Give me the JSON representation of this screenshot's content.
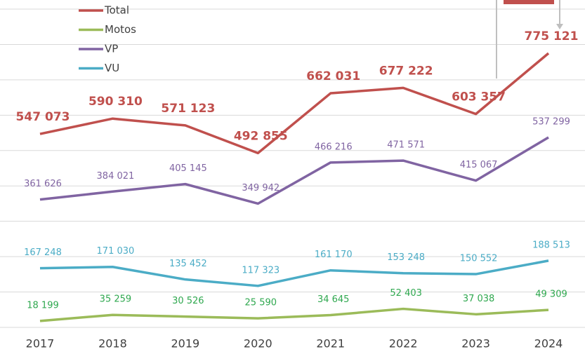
{
  "chart_data": {
    "type": "line",
    "categories": [
      "2017",
      "2018",
      "2019",
      "2020",
      "2021",
      "2022",
      "2023",
      "2024"
    ],
    "series": [
      {
        "name": "Total",
        "color": "#c0504d",
        "label_color": "#c0504d",
        "values": [
          547073,
          590310,
          571123,
          492855,
          662031,
          677222,
          603357,
          775121
        ],
        "value_labels": [
          "547 073",
          "590 310",
          "571 123",
          "492 855",
          "662 031",
          "677 222",
          "603 357",
          "775 121"
        ]
      },
      {
        "name": "Motos",
        "color": "#9bbb59",
        "label_color": "#2fa84f",
        "values": [
          18199,
          35259,
          30526,
          25590,
          34645,
          52403,
          37038,
          49309
        ],
        "value_labels": [
          "18 199",
          "35 259",
          "30 526",
          "25 590",
          "34 645",
          "52 403",
          "37 038",
          "49 309"
        ]
      },
      {
        "name": "VP",
        "color": "#8064a2",
        "label_color": "#8064a2",
        "values": [
          361626,
          384021,
          405145,
          349942,
          466216,
          471571,
          415067,
          537299
        ],
        "value_labels": [
          "361 626",
          "384 021",
          "405 145",
          "349 942",
          "466 216",
          "471 571",
          "415 067",
          "537 299"
        ]
      },
      {
        "name": "VU",
        "color": "#4bacc6",
        "label_color": "#4bacc6",
        "values": [
          167248,
          171030,
          135452,
          117323,
          161170,
          153248,
          150552,
          188513
        ],
        "value_labels": [
          "167 248",
          "171 030",
          "135 452",
          "117 323",
          "161 170",
          "153 248",
          "150 552",
          "188 513"
        ]
      }
    ],
    "ylim": [
      0,
      900000
    ],
    "yticks": [
      0,
      100000,
      200000,
      300000,
      400000,
      500000,
      600000,
      700000,
      800000,
      900000
    ],
    "grid": true,
    "legend": "top-left"
  }
}
